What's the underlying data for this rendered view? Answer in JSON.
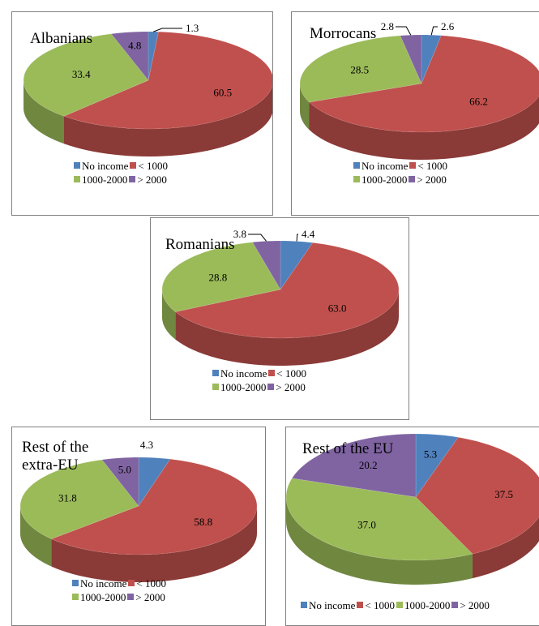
{
  "legend": {
    "items": [
      {
        "label": "No income",
        "color": "#4f81bd"
      },
      {
        "label": "< 1000",
        "color": "#c0504d"
      },
      {
        "label": "1000-2000",
        "color": "#9bbb59"
      },
      {
        "label": "> 2000",
        "color": "#8064a2"
      }
    ]
  },
  "chart_data": [
    {
      "type": "pie",
      "title": "Albanians",
      "categories": [
        "No income",
        "< 1000",
        "1000-2000",
        "> 2000"
      ],
      "values": [
        1.3,
        60.5,
        33.4,
        4.8
      ],
      "labels": [
        "1.3",
        "60.5",
        "33.4",
        "4.8"
      ],
      "legend": "bottom"
    },
    {
      "type": "pie",
      "title": "Morrocans",
      "categories": [
        "No income",
        "< 1000",
        "1000-2000",
        "> 2000"
      ],
      "values": [
        2.6,
        66.2,
        28.5,
        2.8
      ],
      "labels": [
        "2.6",
        "66.2",
        "28.5",
        "2.8"
      ],
      "legend": "bottom"
    },
    {
      "type": "pie",
      "title": "Romanians",
      "categories": [
        "No income",
        "< 1000",
        "1000-2000",
        "> 2000"
      ],
      "values": [
        4.4,
        63.0,
        28.8,
        3.8
      ],
      "labels": [
        "4.4",
        "63.0",
        "28.8",
        "3.8"
      ],
      "legend": "bottom"
    },
    {
      "type": "pie",
      "title": "Rest of the extra-EU",
      "title_lines": [
        "Rest of the",
        "extra-EU"
      ],
      "categories": [
        "No income",
        "< 1000",
        "1000-2000",
        "> 2000"
      ],
      "values": [
        4.3,
        58.8,
        31.8,
        5.0
      ],
      "labels": [
        "4.3",
        "58.8",
        "31.8",
        "5.0"
      ],
      "legend": "bottom"
    },
    {
      "type": "pie",
      "title": "Rest of the EU",
      "categories": [
        "No income",
        "< 1000",
        "1000-2000",
        "> 2000"
      ],
      "values": [
        5.3,
        37.5,
        37.0,
        20.2
      ],
      "labels": [
        "5.3",
        "37.5",
        "37.0",
        "20.2"
      ],
      "legend": "bottom"
    }
  ]
}
